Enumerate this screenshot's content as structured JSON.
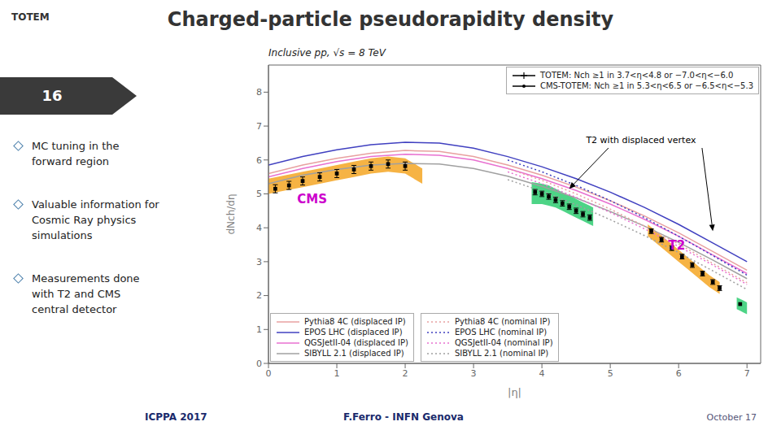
{
  "chart_data": {
    "type": "line",
    "title": "Charged-particle pseudorapidity density",
    "subtitle": "Inclusive pp, √s = 8 TeV",
    "slide_number": "16",
    "logo": "TOTEM",
    "bullet_points": [
      "MC tuning in the\nforward region",
      "Valuable information for\nCosmic Ray physics\nsimulations",
      "Measurements done\nwith T2 and CMS\ncentral detector"
    ],
    "footer": [
      "ICPPA 2017",
      "F.Ferro - INFN Genova",
      "October 17"
    ],
    "x_label": "|η|",
    "y_label": "dNch/dη",
    "xlim": [
      0,
      7.2
    ],
    "ylim": [
      0,
      8.8
    ],
    "xticks": [
      0,
      1,
      2,
      3,
      4,
      5,
      6,
      7
    ],
    "yticks": [
      0,
      1,
      2,
      3,
      4,
      5,
      6,
      7,
      8
    ],
    "grid": false,
    "series": [
      {
        "name": "Pythia8 4C (displaced IP)",
        "type": "line",
        "color": "#e8a0a0",
        "line_style": "solid",
        "x": [
          0.0,
          0.5,
          1.0,
          1.5,
          2.0,
          2.5,
          3.0,
          3.5,
          4.0,
          4.5,
          5.0,
          5.5,
          6.0,
          6.5,
          7.0
        ],
        "values": [
          5.6,
          5.85,
          6.05,
          6.2,
          6.28,
          6.25,
          6.1,
          5.85,
          5.55,
          5.2,
          4.8,
          4.35,
          3.85,
          3.3,
          2.75
        ]
      },
      {
        "name": "EPOS LHC (displaced IP)",
        "type": "line",
        "color": "#4040c0",
        "line_style": "solid",
        "x": [
          0.0,
          0.5,
          1.0,
          1.5,
          2.0,
          2.5,
          3.0,
          3.5,
          4.0,
          4.5,
          5.0,
          5.5,
          6.0,
          6.5,
          7.0
        ],
        "values": [
          5.85,
          6.1,
          6.3,
          6.45,
          6.52,
          6.5,
          6.35,
          6.1,
          5.8,
          5.45,
          5.05,
          4.6,
          4.1,
          3.55,
          3.0
        ]
      },
      {
        "name": "QGSJetII-04 (displaced IP)",
        "type": "line",
        "color": "#e870d0",
        "line_style": "solid",
        "x": [
          0.0,
          0.5,
          1.0,
          1.5,
          2.0,
          2.5,
          3.0,
          3.5,
          4.0,
          4.5,
          5.0,
          5.5,
          6.0,
          6.5,
          7.0
        ],
        "values": [
          5.5,
          5.75,
          5.95,
          6.1,
          6.17,
          6.14,
          6.0,
          5.75,
          5.45,
          5.1,
          4.7,
          4.25,
          3.75,
          3.2,
          2.65
        ]
      },
      {
        "name": "SIBYLL 2.1 (displaced IP)",
        "type": "line",
        "color": "#a0a0a0",
        "line_style": "solid",
        "x": [
          0.0,
          0.5,
          1.0,
          1.5,
          2.0,
          2.5,
          3.0,
          3.5,
          4.0,
          4.5,
          5.0,
          5.5,
          6.0,
          6.5,
          7.0
        ],
        "values": [
          5.3,
          5.55,
          5.72,
          5.85,
          5.9,
          5.88,
          5.75,
          5.52,
          5.22,
          4.88,
          4.48,
          4.05,
          3.57,
          3.05,
          2.5
        ]
      },
      {
        "name": "Pythia8 4C (nominal IP)",
        "type": "line",
        "color": "#e8a0a0",
        "line_style": "dotted",
        "x": [
          3.5,
          4.0,
          4.5,
          5.0,
          5.5,
          6.0,
          6.5,
          7.0
        ],
        "values": [
          5.75,
          5.4,
          5.0,
          4.55,
          4.05,
          3.52,
          2.95,
          2.38
        ]
      },
      {
        "name": "EPOS LHC (nominal IP)",
        "type": "line",
        "color": "#4040c0",
        "line_style": "dotted",
        "x": [
          3.5,
          4.0,
          4.5,
          5.0,
          5.5,
          6.0,
          6.5,
          7.0
        ],
        "values": [
          6.0,
          5.65,
          5.25,
          4.8,
          4.3,
          3.75,
          3.18,
          2.6
        ]
      },
      {
        "name": "QGSJetII-04 (nominal IP)",
        "type": "line",
        "color": "#e870d0",
        "line_style": "dotted",
        "x": [
          3.5,
          4.0,
          4.5,
          5.0,
          5.5,
          6.0,
          6.5,
          7.0
        ],
        "values": [
          5.65,
          5.3,
          4.9,
          4.45,
          3.97,
          3.45,
          2.9,
          2.33
        ]
      },
      {
        "name": "SIBYLL 2.1 (nominal IP)",
        "type": "line",
        "color": "#a0a0a0",
        "line_style": "dotted",
        "x": [
          3.5,
          4.0,
          4.5,
          5.0,
          5.5,
          6.0,
          6.5,
          7.0
        ],
        "values": [
          5.42,
          5.08,
          4.68,
          4.24,
          3.77,
          3.27,
          2.73,
          2.18
        ]
      },
      {
        "type": "band",
        "color": "#f5a623",
        "x": [
          0.0,
          0.25,
          0.5,
          0.75,
          1.0,
          1.25,
          1.5,
          1.75,
          2.0,
          2.25
        ],
        "low": [
          5.0,
          5.1,
          5.2,
          5.3,
          5.4,
          5.5,
          5.6,
          5.65,
          5.6,
          5.3
        ],
        "high": [
          5.45,
          5.55,
          5.65,
          5.75,
          5.85,
          5.95,
          6.05,
          6.1,
          6.05,
          5.75
        ]
      },
      {
        "type": "scatter",
        "marker": "square",
        "color": "#000000",
        "x": [
          0.1,
          0.3,
          0.5,
          0.75,
          1.0,
          1.25,
          1.5,
          1.75,
          2.0
        ],
        "values": [
          5.15,
          5.25,
          5.38,
          5.5,
          5.6,
          5.72,
          5.82,
          5.88,
          5.82
        ],
        "errors": [
          0.12,
          0.12,
          0.12,
          0.12,
          0.12,
          0.12,
          0.12,
          0.12,
          0.12
        ]
      },
      {
        "type": "band",
        "color": "#2ecc71",
        "x": [
          3.85,
          4.0,
          4.1,
          4.2,
          4.3,
          4.4,
          4.5,
          4.6,
          4.7,
          4.75
        ],
        "low": [
          4.7,
          4.7,
          4.65,
          4.6,
          4.5,
          4.4,
          4.3,
          4.2,
          4.1,
          4.05
        ],
        "high": [
          5.35,
          5.3,
          5.25,
          5.15,
          5.05,
          4.95,
          4.85,
          4.75,
          4.65,
          4.6
        ]
      },
      {
        "type": "scatter",
        "marker": "square",
        "color": "#000000",
        "x": [
          3.9,
          4.0,
          4.1,
          4.2,
          4.3,
          4.4,
          4.5,
          4.6,
          4.7
        ],
        "values": [
          5.05,
          5.0,
          4.92,
          4.82,
          4.72,
          4.62,
          4.5,
          4.4,
          4.3
        ],
        "errors": [
          0.08,
          0.08,
          0.08,
          0.08,
          0.08,
          0.08,
          0.08,
          0.08,
          0.08
        ]
      },
      {
        "type": "band",
        "color": "#f5a623",
        "x": [
          5.55,
          5.7,
          5.85,
          6.0,
          6.15,
          6.3,
          6.45,
          6.6
        ],
        "low": [
          3.75,
          3.5,
          3.25,
          3.0,
          2.75,
          2.5,
          2.25,
          2.05
        ],
        "high": [
          4.1,
          3.85,
          3.6,
          3.35,
          3.1,
          2.85,
          2.6,
          2.4
        ]
      },
      {
        "type": "scatter",
        "marker": "square",
        "color": "#000000",
        "x": [
          5.6,
          5.75,
          5.9,
          6.05,
          6.2,
          6.35,
          6.5,
          6.6
        ],
        "values": [
          3.9,
          3.65,
          3.4,
          3.15,
          2.9,
          2.65,
          2.4,
          2.22
        ],
        "errors": [
          0.07,
          0.07,
          0.07,
          0.07,
          0.07,
          0.07,
          0.07,
          0.07
        ]
      },
      {
        "type": "band",
        "color": "#2ecc71",
        "x": [
          6.85,
          6.9,
          6.95,
          7.0
        ],
        "low": [
          1.6,
          1.55,
          1.5,
          1.45
        ],
        "high": [
          1.95,
          1.9,
          1.85,
          1.8
        ]
      },
      {
        "type": "scatter",
        "marker": "square",
        "color": "#000000",
        "x": [
          6.9
        ],
        "values": [
          1.75
        ]
      }
    ],
    "legend_entries": [
      {
        "label": "TOTEM: Nch ≥1 in 3.7<η<4.8 or −7.0<η<−6.0",
        "color": "#000000",
        "marker": "plus"
      },
      {
        "label": "CMS-TOTEM: Nch ≥1 in 5.3<η<6.5 or −6.5<η<−5.3",
        "color": "#000000",
        "marker": "dot"
      }
    ],
    "annotations": [
      {
        "text": "CMS",
        "x": 0.42,
        "y": 4.72,
        "color": "#cc00cc"
      },
      {
        "text": "T2",
        "x": 5.85,
        "y": 3.35,
        "color": "#cc00cc"
      },
      {
        "text": "T2 with displaced vertex",
        "x": 5.45,
        "y": 6.45,
        "arrows": [
          [
            4.4,
            5.15
          ],
          [
            6.5,
            3.9
          ]
        ]
      }
    ]
  }
}
